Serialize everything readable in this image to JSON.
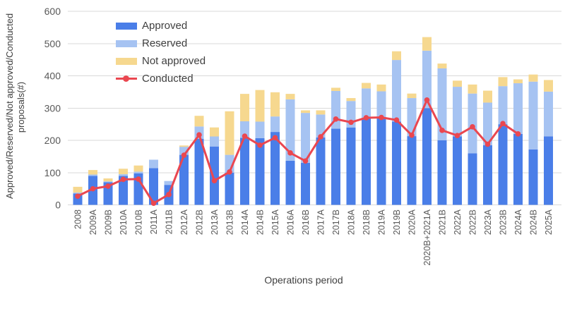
{
  "chart_data": {
    "type": "bar",
    "stacked": true,
    "title": "",
    "xlabel": "Operations period",
    "ylabel_line1": "Approved/Reserved/Not approved/Conducted",
    "ylabel_line2": "proposals(#)",
    "ylim": [
      0,
      600
    ],
    "yticks": [
      0,
      100,
      200,
      300,
      400,
      500,
      600
    ],
    "grid": true,
    "legend_position": "top-left-inside",
    "categories": [
      "2008",
      "2009A",
      "2009B",
      "2010A",
      "2010B",
      "2011A",
      "2011B",
      "2012A",
      "2012B",
      "2013A",
      "2013B",
      "2014A",
      "2014B",
      "2015A",
      "2016A",
      "2016B",
      "2017A",
      "2017B",
      "2018A",
      "2018B",
      "2019A",
      "2019B",
      "2020A",
      "2020B+2021A",
      "2021B",
      "2022A",
      "2022B",
      "2023A",
      "2023B",
      "2024A",
      "2024B",
      "2025A"
    ],
    "series": [
      {
        "name": "Approved",
        "color": "#4a7ee8",
        "values": [
          35,
          90,
          70,
          90,
          98,
          114,
          62,
          155,
          205,
          181,
          100,
          208,
          207,
          226,
          137,
          130,
          209,
          236,
          240,
          268,
          268,
          258,
          213,
          300,
          200,
          212,
          160,
          185,
          250,
          220,
          172,
          212
        ]
      },
      {
        "name": "Reserved",
        "color": "#a6c3f2",
        "values": [
          3,
          4,
          3,
          5,
          5,
          26,
          12,
          25,
          38,
          31,
          55,
          51,
          51,
          48,
          190,
          155,
          71,
          117,
          82,
          93,
          84,
          191,
          118,
          178,
          223,
          154,
          185,
          132,
          118,
          157,
          210,
          139
        ]
      },
      {
        "name": "Not approved",
        "color": "#f6d88f",
        "values": [
          18,
          14,
          9,
          17,
          19,
          0,
          0,
          4,
          33,
          28,
          135,
          85,
          98,
          75,
          17,
          8,
          13,
          10,
          9,
          17,
          21,
          27,
          14,
          42,
          15,
          19,
          28,
          37,
          28,
          12,
          22,
          36
        ]
      }
    ],
    "line_series": {
      "name": "Conducted",
      "color": "#ea4750",
      "values": [
        27,
        50,
        58,
        79,
        80,
        5,
        32,
        154,
        217,
        75,
        102,
        213,
        185,
        208,
        161,
        136,
        211,
        266,
        256,
        270,
        271,
        263,
        216,
        325,
        231,
        215,
        242,
        188,
        252,
        220,
        null,
        null
      ]
    }
  },
  "style": {
    "gridline_color": "#d9d9d9",
    "tick_label_color": "#595959",
    "axis_title_color": "#3f3f3f"
  }
}
